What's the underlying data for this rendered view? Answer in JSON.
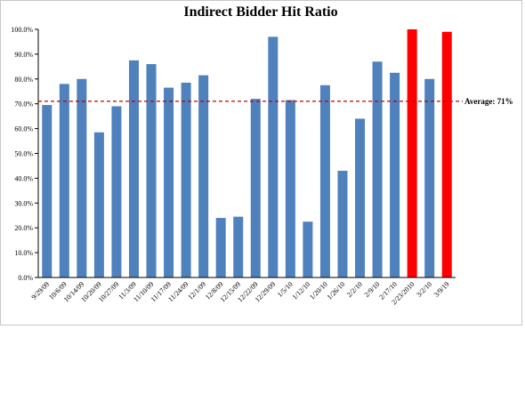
{
  "chart_data": {
    "type": "bar",
    "title": "Indirect Bidder Hit Ratio",
    "xlabel": "",
    "ylabel": "",
    "ylim": [
      0,
      100
    ],
    "yticks": [
      "0.0%",
      "10.0%",
      "20.0%",
      "30.0%",
      "40.0%",
      "50.0%",
      "60.0%",
      "70.0%",
      "80.0%",
      "90.0%",
      "100.0%"
    ],
    "categories": [
      "9/29/09",
      "10/6/09",
      "10/14/09",
      "10/20/09",
      "10/27/09",
      "11/3/09",
      "11/10/09",
      "11/17/09",
      "11/24/09",
      "12/1/09",
      "12/8/09",
      "12/15/09",
      "12/22/09",
      "12/29/09",
      "1/5/10",
      "1/12/10",
      "1/20/10",
      "1/26/10",
      "2/2/10",
      "2/9/10",
      "2/17/10",
      "2/23/2010",
      "3/2/10",
      "3/9/19"
    ],
    "values": [
      69.5,
      78,
      80,
      58.5,
      69,
      87.5,
      86,
      76.5,
      78.5,
      81.5,
      24,
      24.5,
      72,
      97,
      71.5,
      22.5,
      77.5,
      43,
      64,
      87,
      82.5,
      100,
      80,
      99
    ],
    "highlighted": [
      21,
      23
    ],
    "colors": {
      "bar": "#4F81BD",
      "highlight": "#FF0000",
      "average_line": "#C00000"
    },
    "average": {
      "value": 71,
      "label": "Average: 71%"
    },
    "grid": false,
    "legend": "none"
  }
}
